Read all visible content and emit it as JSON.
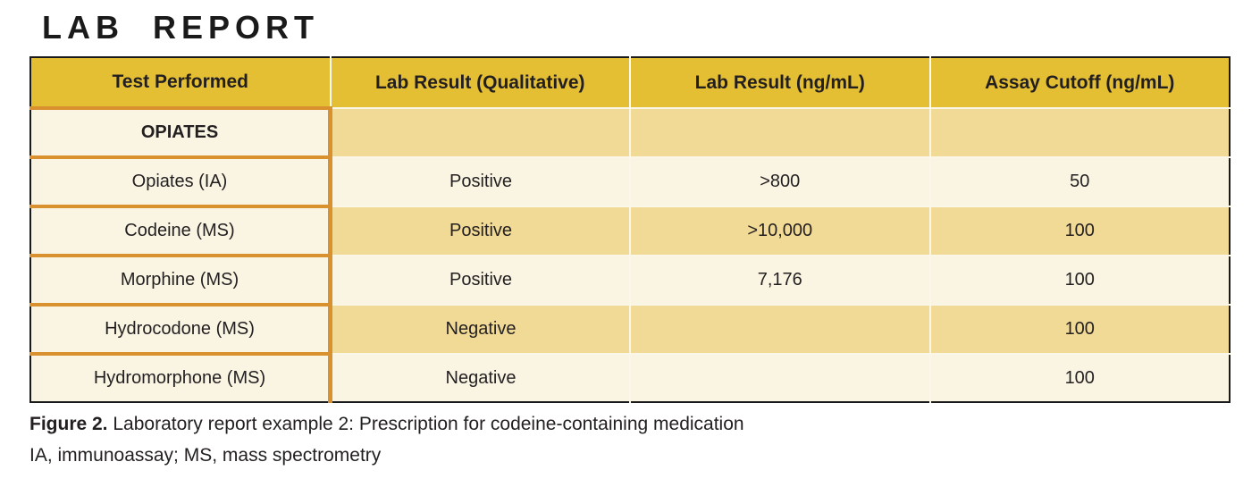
{
  "title": "LAB REPORT",
  "table": {
    "headers": [
      "Test Performed",
      "Lab Result (Qualitative)",
      "Lab Result (ng/mL)",
      "Assay Cutoff (ng/mL)"
    ],
    "rows": [
      {
        "test": "OPIATES",
        "qualitative": "",
        "ng_ml": "",
        "cutoff": ""
      },
      {
        "test": "Opiates (IA)",
        "qualitative": "Positive",
        "ng_ml": ">800",
        "cutoff": "50"
      },
      {
        "test": "Codeine (MS)",
        "qualitative": "Positive",
        "ng_ml": ">10,000",
        "cutoff": "100"
      },
      {
        "test": "Morphine (MS)",
        "qualitative": "Positive",
        "ng_ml": "7,176",
        "cutoff": "100"
      },
      {
        "test": "Hydrocodone (MS)",
        "qualitative": "Negative",
        "ng_ml": "",
        "cutoff": "100"
      },
      {
        "test": "Hydromorphone (MS)",
        "qualitative": "Negative",
        "ng_ml": "",
        "cutoff": "100"
      }
    ]
  },
  "caption": {
    "figure_label": "Figure 2.",
    "text": " Laboratory report example 2: Prescription for codeine-containing medication",
    "footnote": "IA, immunoassay; MS, mass spectrometry"
  },
  "colors": {
    "header_gold": "#e4bf33",
    "row_tan": "#f1da95",
    "row_cream": "#faf5e3",
    "column_accent_orange": "#d9912f",
    "table_border_black": "#1a1a1a",
    "text": "#231f20"
  }
}
